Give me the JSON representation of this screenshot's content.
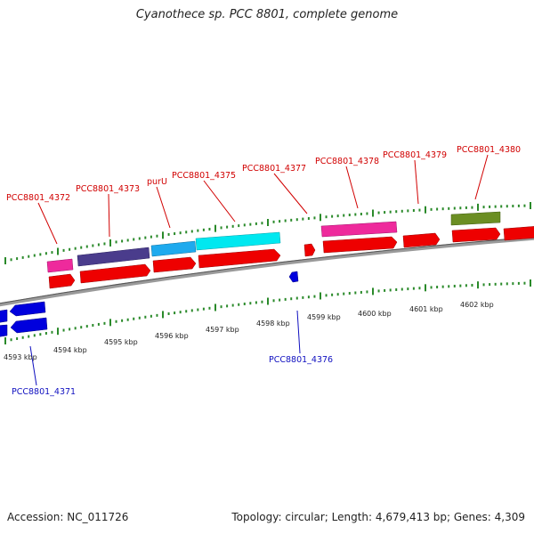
{
  "title": "Cyanothece sp. PCC 8801, complete genome",
  "footer": {
    "accession": "Accession: NC_011726",
    "summary": "Topology: circular; Length: 4,679,413 bp; Genes: 4,309"
  },
  "colors": {
    "cds": "#ee0000",
    "gene_pink": "#ee2a9c",
    "gene_purple": "#4a3c8c",
    "gene_sky": "#1eaaee",
    "gene_cyan": "#00e8f0",
    "gene_olive": "#6b8e23",
    "gene_blue": "#0000dd",
    "tick": "#2a8a2a",
    "backbone": "#808080",
    "label_red": "#d10000",
    "label_blue": "#1010c0"
  },
  "scale": {
    "unit": "kbp",
    "ticks": [
      {
        "kbp": 4593,
        "label": "4593 kbp"
      },
      {
        "kbp": 4594,
        "label": "4594 kbp"
      },
      {
        "kbp": 4595,
        "label": "4595 kbp"
      },
      {
        "kbp": 4596,
        "label": "4596 kbp"
      },
      {
        "kbp": 4597,
        "label": "4597 kbp"
      },
      {
        "kbp": 4598,
        "label": "4598 kbp"
      },
      {
        "kbp": 4599,
        "label": "4599 kbp"
      },
      {
        "kbp": 4600,
        "label": "4600 kbp"
      },
      {
        "kbp": 4601,
        "label": "4601 kbp"
      },
      {
        "kbp": 4602,
        "label": "4602 kbp"
      }
    ]
  },
  "genes": [
    {
      "label": "PCC8801_4371",
      "strand": "reverse",
      "color": "blue"
    },
    {
      "label": "PCC8801_4372",
      "strand": "forward",
      "color": "pink"
    },
    {
      "label": "PCC8801_4373",
      "strand": "forward",
      "color": "purple"
    },
    {
      "label": "purU",
      "strand": "forward",
      "color": "sky"
    },
    {
      "label": "PCC8801_4375",
      "strand": "forward",
      "color": "cyan"
    },
    {
      "label": "PCC8801_4376",
      "strand": "reverse",
      "color": "blue"
    },
    {
      "label": "PCC8801_4377",
      "strand": "forward",
      "color": "red"
    },
    {
      "label": "PCC8801_4378",
      "strand": "forward",
      "color": "pink"
    },
    {
      "label": "PCC8801_4379",
      "strand": "forward",
      "color": "red"
    },
    {
      "label": "PCC8801_4380",
      "strand": "forward",
      "color": "olive"
    }
  ]
}
